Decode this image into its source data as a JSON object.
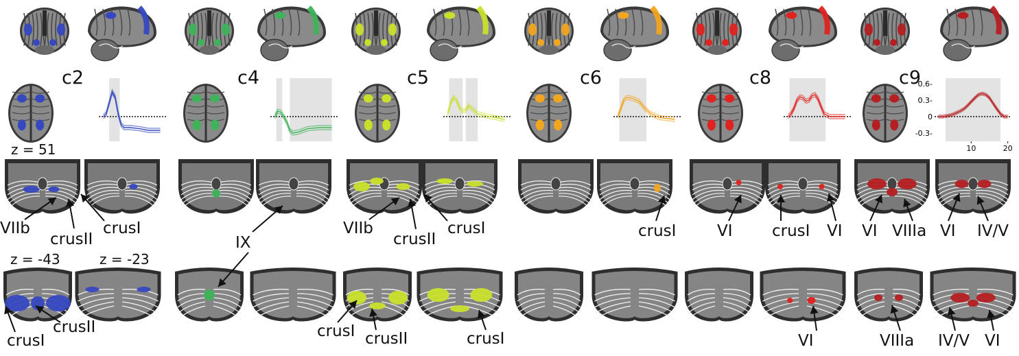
{
  "components": [
    {
      "label": "c2",
      "color": "#3548c0"
    },
    {
      "label": "c4",
      "color": "#3fb35a"
    },
    {
      "label": "c5",
      "color": "#c9e02b"
    },
    {
      "label": "c6",
      "color": "#f2a51f"
    },
    {
      "label": "c8",
      "color": "#e0231f"
    },
    {
      "label": "c9",
      "color": "#b51f22"
    }
  ],
  "slice_labels": {
    "axial_top": "z = 51",
    "cereb_left": "z = -43",
    "cereb_right": "z = -23"
  },
  "lobule_labels": {
    "c2_row3": [
      "VIIb",
      "crusII",
      "crusI"
    ],
    "c4_row3": [
      "IX"
    ],
    "c5_row3": [
      "VIIb",
      "crusII",
      "crusI"
    ],
    "c6_row3": [
      "crusI"
    ],
    "c8_row3": [
      "VI",
      "crusI",
      "VI"
    ],
    "c9_row3": [
      "VI",
      "VIIIa",
      "VI",
      "IV/V"
    ],
    "c2_row4": [
      "crusI",
      "crusII"
    ],
    "c5_row4": [
      "crusI",
      "crusII",
      "crusI"
    ],
    "c8_row4": [
      "VI"
    ],
    "c9_row4": [
      "VIIIa",
      "IV/V",
      "VI"
    ]
  },
  "chart_data": [
    {
      "type": "line",
      "component": "c9",
      "yticks": [
        "0.6-",
        "0.3-",
        "0",
        "-0.3-"
      ],
      "xticks": [
        "10",
        "20"
      ],
      "ylim": [
        -0.45,
        0.7
      ],
      "xlim": [
        0,
        21
      ],
      "series": [
        {
          "x": [
            1,
            2,
            3,
            4,
            5,
            6,
            7,
            8,
            9,
            10,
            11,
            12,
            13,
            14,
            15,
            16,
            17,
            18,
            19,
            20
          ],
          "y": [
            0.0,
            0.0,
            0.01,
            0.02,
            0.04,
            0.07,
            0.1,
            0.14,
            0.2,
            0.27,
            0.34,
            0.4,
            0.42,
            0.4,
            0.34,
            0.24,
            0.14,
            0.05,
            0.0,
            0.0
          ]
        }
      ],
      "shaded": [
        [
          3,
          18
        ]
      ]
    }
  ]
}
